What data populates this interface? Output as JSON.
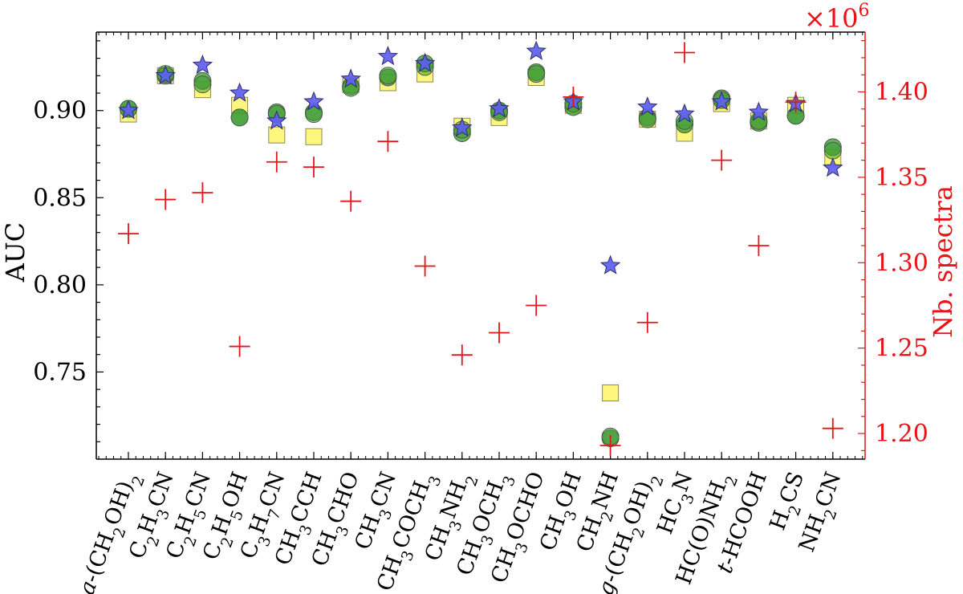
{
  "chart_data": {
    "type": "scatter",
    "title": "",
    "xlabel": "",
    "ylabel": "AUC",
    "y2label": "Nb. spectra",
    "y2_multiplier": "×10",
    "y2_multiplier_exp": "6",
    "ylim": [
      0.7,
      0.945
    ],
    "y2lim": [
      1.185,
      1.435
    ],
    "yticks": [
      0.75,
      0.8,
      0.85,
      0.9
    ],
    "yticklabels": [
      "0.75",
      "0.80",
      "0.85",
      "0.90"
    ],
    "y2ticks": [
      1.2,
      1.25,
      1.3,
      1.35,
      1.4
    ],
    "y2ticklabels": [
      "1.20",
      "1.25",
      "1.30",
      "1.35",
      "1.40"
    ],
    "categories": [
      {
        "plain": "a-(CH2OH)2",
        "parts": [
          [
            "a",
            "it"
          ],
          [
            "-(CH",
            ""
          ],
          [
            "2",
            "sub"
          ],
          [
            "OH)",
            ""
          ],
          [
            "2",
            "sub"
          ]
        ]
      },
      {
        "plain": "C2H3CN",
        "parts": [
          [
            "C",
            ""
          ],
          [
            "2",
            "sub"
          ],
          [
            "H",
            ""
          ],
          [
            "3",
            "sub"
          ],
          [
            "CN",
            ""
          ]
        ]
      },
      {
        "plain": "C2H5CN",
        "parts": [
          [
            "C",
            ""
          ],
          [
            "2",
            "sub"
          ],
          [
            "H",
            ""
          ],
          [
            "5",
            "sub"
          ],
          [
            "CN",
            ""
          ]
        ]
      },
      {
        "plain": "C2H5OH",
        "parts": [
          [
            "C",
            ""
          ],
          [
            "2",
            "sub"
          ],
          [
            "H",
            ""
          ],
          [
            "5",
            "sub"
          ],
          [
            "OH",
            ""
          ]
        ]
      },
      {
        "plain": "C3H7CN",
        "parts": [
          [
            "C",
            ""
          ],
          [
            "3",
            "sub"
          ],
          [
            "H",
            ""
          ],
          [
            "7",
            "sub"
          ],
          [
            "CN",
            ""
          ]
        ]
      },
      {
        "plain": "CH3CCH",
        "parts": [
          [
            "CH",
            ""
          ],
          [
            "3",
            "sub"
          ],
          [
            "CCH",
            ""
          ]
        ]
      },
      {
        "plain": "CH3CHO",
        "parts": [
          [
            "CH",
            ""
          ],
          [
            "3",
            "sub"
          ],
          [
            "CHO",
            ""
          ]
        ]
      },
      {
        "plain": "CH3CN",
        "parts": [
          [
            "CH",
            ""
          ],
          [
            "3",
            "sub"
          ],
          [
            "CN",
            ""
          ]
        ]
      },
      {
        "plain": "CH3COCH3",
        "parts": [
          [
            "CH",
            ""
          ],
          [
            "3",
            "sub"
          ],
          [
            "COCH",
            ""
          ],
          [
            "3",
            "sub"
          ]
        ]
      },
      {
        "plain": "CH3NH2",
        "parts": [
          [
            "CH",
            ""
          ],
          [
            "3",
            "sub"
          ],
          [
            "NH",
            ""
          ],
          [
            "2",
            "sub"
          ]
        ]
      },
      {
        "plain": "CH3OCH3",
        "parts": [
          [
            "CH",
            ""
          ],
          [
            "3",
            "sub"
          ],
          [
            "OCH",
            ""
          ],
          [
            "3",
            "sub"
          ]
        ]
      },
      {
        "plain": "CH3OCHO",
        "parts": [
          [
            "CH",
            ""
          ],
          [
            "3",
            "sub"
          ],
          [
            "OCHO",
            ""
          ]
        ]
      },
      {
        "plain": "CH3OH",
        "parts": [
          [
            "CH",
            ""
          ],
          [
            "3",
            "sub"
          ],
          [
            "OH",
            ""
          ]
        ]
      },
      {
        "plain": "CH2NH",
        "parts": [
          [
            "CH",
            ""
          ],
          [
            "2",
            "sub"
          ],
          [
            "NH",
            ""
          ]
        ]
      },
      {
        "plain": "g-(CH2OH)2",
        "parts": [
          [
            "g",
            "it"
          ],
          [
            "-(CH",
            ""
          ],
          [
            "2",
            "sub"
          ],
          [
            "OH)",
            ""
          ],
          [
            "2",
            "sub"
          ]
        ]
      },
      {
        "plain": "HC3N",
        "parts": [
          [
            "HC",
            ""
          ],
          [
            "3",
            "sub"
          ],
          [
            "N",
            ""
          ]
        ]
      },
      {
        "plain": "HC(O)NH2",
        "parts": [
          [
            "HC(O)NH",
            ""
          ],
          [
            "2",
            "sub"
          ]
        ]
      },
      {
        "plain": "t-HCOOH",
        "parts": [
          [
            "t",
            "it"
          ],
          [
            "-HCOOH",
            ""
          ]
        ]
      },
      {
        "plain": "H2CS",
        "parts": [
          [
            "H",
            ""
          ],
          [
            "2",
            "sub"
          ],
          [
            "CS",
            ""
          ]
        ]
      },
      {
        "plain": "NH2CN",
        "parts": [
          [
            "NH",
            ""
          ],
          [
            "2",
            "sub"
          ],
          [
            "CN",
            ""
          ]
        ]
      }
    ],
    "series": [
      {
        "name": "squares",
        "marker": "square",
        "axis": "left",
        "color": "#fff566",
        "edge": "#8a8a55",
        "values": [
          0.898,
          0.92,
          0.912,
          0.903,
          0.886,
          0.885,
          0.915,
          0.916,
          0.921,
          0.891,
          0.896,
          0.919,
          0.903,
          0.738,
          0.895,
          0.887,
          0.904,
          0.894,
          0.903,
          0.873
        ]
      },
      {
        "name": "circles",
        "marker": "circle",
        "axis": "left",
        "color": "#3d9c33",
        "edge": "#4a5a48",
        "values_a": [
          0.901,
          0.92,
          0.917,
          0.896,
          0.899,
          0.899,
          0.914,
          0.919,
          0.927,
          0.887,
          0.9,
          0.922,
          0.902,
          0.712,
          0.896,
          0.892,
          0.907,
          0.893,
          0.897,
          0.879
        ],
        "values_b": [
          0.901,
          0.921,
          0.915,
          0.896,
          0.898,
          0.898,
          0.913,
          0.92,
          0.925,
          0.889,
          0.899,
          0.921,
          0.904,
          0.713,
          0.895,
          0.894,
          0.906,
          0.894,
          0.897,
          0.877
        ]
      },
      {
        "name": "stars",
        "marker": "star",
        "axis": "left",
        "color": "#5e5ef0",
        "edge": "#2d2d66",
        "values": [
          0.9,
          0.92,
          0.926,
          0.91,
          0.894,
          0.905,
          0.918,
          0.931,
          0.927,
          0.89,
          0.901,
          0.934,
          0.905,
          0.811,
          0.902,
          0.898,
          0.905,
          0.899,
          0.904,
          0.867
        ]
      },
      {
        "name": "Nb. spectra",
        "marker": "plus",
        "axis": "right",
        "color": "#e8141a",
        "values": [
          1.317,
          1.337,
          1.341,
          1.251,
          1.359,
          1.356,
          1.336,
          1.371,
          1.298,
          1.246,
          1.259,
          1.275,
          1.397,
          1.193,
          1.265,
          1.423,
          1.36,
          1.31,
          1.394,
          1.203
        ]
      }
    ]
  }
}
